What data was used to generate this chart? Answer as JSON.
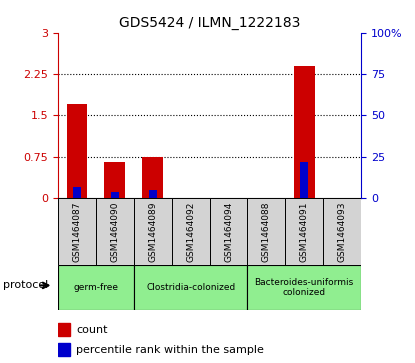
{
  "title": "GDS5424 / ILMN_1222183",
  "samples": [
    "GSM1464087",
    "GSM1464090",
    "GSM1464089",
    "GSM1464092",
    "GSM1464094",
    "GSM1464088",
    "GSM1464091",
    "GSM1464093"
  ],
  "red_values": [
    1.7,
    0.65,
    0.75,
    0.0,
    0.0,
    0.0,
    2.4,
    0.0
  ],
  "blue_values": [
    0.2,
    0.1,
    0.135,
    0.0,
    0.0,
    0.0,
    0.65,
    0.0
  ],
  "ylim_left": [
    0,
    3
  ],
  "ylim_right": [
    0,
    100
  ],
  "yticks_left": [
    0,
    0.75,
    1.5,
    2.25,
    3
  ],
  "yticks_right": [
    0,
    25,
    50,
    75,
    100
  ],
  "ytick_labels_left": [
    "0",
    "0.75",
    "1.5",
    "2.25",
    "3"
  ],
  "ytick_labels_right": [
    "0",
    "25",
    "50",
    "75",
    "100%"
  ],
  "hlines": [
    0.75,
    1.5,
    2.25
  ],
  "groups": [
    {
      "label": "germ-free",
      "start": 0,
      "end": 2,
      "color": "#90ee90"
    },
    {
      "label": "Clostridia-colonized",
      "start": 2,
      "end": 5,
      "color": "#90ee90"
    },
    {
      "label": "Bacteroides-uniformis\ncolonized",
      "start": 5,
      "end": 8,
      "color": "#90ee90"
    }
  ],
  "protocol_label": "protocol",
  "bar_color": "#cc0000",
  "blue_color": "#0000cc",
  "sample_box_color": "#d3d3d3",
  "bar_width": 0.55,
  "blue_bar_width": 0.2,
  "background_color": "#ffffff",
  "legend_items": [
    {
      "color": "#cc0000",
      "label": "count"
    },
    {
      "color": "#0000cc",
      "label": "percentile rank within the sample"
    }
  ],
  "left_axis_color": "#cc0000",
  "right_axis_color": "#0000cc"
}
